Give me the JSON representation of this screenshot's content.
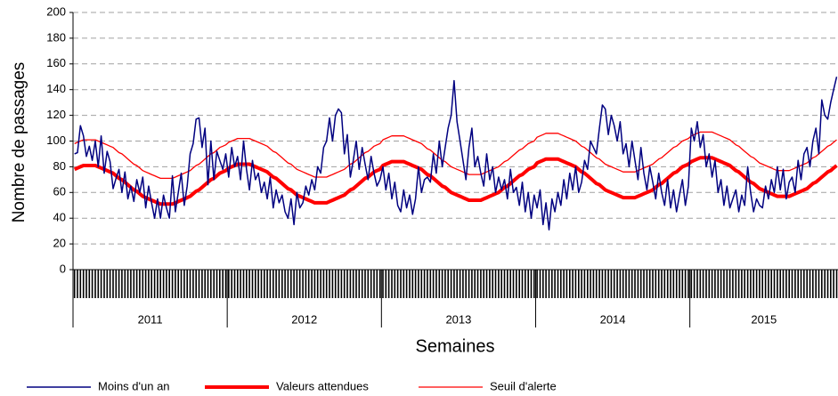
{
  "chart_data": {
    "type": "line",
    "ylabel": "Nombre de passages",
    "xlabel": "Semaines",
    "ylim": [
      0,
      200
    ],
    "yticks": [
      0,
      20,
      40,
      60,
      80,
      100,
      120,
      140,
      160,
      180,
      200
    ],
    "grid": true,
    "legend": "bottom",
    "categories": [
      "2011",
      "2011",
      "2011",
      "2011",
      "2011",
      "2011",
      "2011",
      "2011",
      "2011",
      "2011",
      "2011",
      "2011",
      "2011",
      "2011",
      "2011",
      "2011",
      "2011",
      "2011",
      "2011",
      "2011",
      "2011",
      "2011",
      "2011",
      "2011",
      "2011",
      "2011",
      "2011",
      "2011",
      "2011",
      "2011",
      "2011",
      "2011",
      "2011",
      "2011",
      "2011",
      "2011",
      "2011",
      "2011",
      "2011",
      "2011",
      "2011",
      "2011",
      "2011",
      "2011",
      "2011",
      "2011",
      "2011",
      "2011",
      "2011",
      "2011",
      "2011",
      "2011",
      "2012",
      "2012",
      "2012",
      "2012",
      "2012",
      "2012",
      "2012",
      "2012",
      "2012",
      "2012",
      "2012",
      "2012",
      "2012",
      "2012",
      "2012",
      "2012",
      "2012",
      "2012",
      "2012",
      "2012",
      "2012",
      "2012",
      "2012",
      "2012",
      "2012",
      "2012",
      "2012",
      "2012",
      "2012",
      "2012",
      "2012",
      "2012",
      "2012",
      "2012",
      "2012",
      "2012",
      "2012",
      "2012",
      "2012",
      "2012",
      "2012",
      "2012",
      "2012",
      "2012",
      "2012",
      "2012",
      "2012",
      "2012",
      "2012",
      "2012",
      "2012",
      "2012",
      "2013",
      "2013",
      "2013",
      "2013",
      "2013",
      "2013",
      "2013",
      "2013",
      "2013",
      "2013",
      "2013",
      "2013",
      "2013",
      "2013",
      "2013",
      "2013",
      "2013",
      "2013",
      "2013",
      "2013",
      "2013",
      "2013",
      "2013",
      "2013",
      "2013",
      "2013",
      "2013",
      "2013",
      "2013",
      "2013",
      "2013",
      "2013",
      "2013",
      "2013",
      "2013",
      "2013",
      "2013",
      "2013",
      "2013",
      "2013",
      "2013",
      "2013",
      "2013",
      "2013",
      "2013",
      "2013",
      "2013",
      "2013",
      "2013",
      "2013",
      "2013",
      "2013",
      "2014",
      "2014",
      "2014",
      "2014",
      "2014",
      "2014",
      "2014",
      "2014",
      "2014",
      "2014",
      "2014",
      "2014",
      "2014",
      "2014",
      "2014",
      "2014",
      "2014",
      "2014",
      "2014",
      "2014",
      "2014",
      "2014",
      "2014",
      "2014",
      "2014",
      "2014",
      "2014",
      "2014",
      "2014",
      "2014",
      "2014",
      "2014",
      "2014",
      "2014",
      "2014",
      "2014",
      "2014",
      "2014",
      "2014",
      "2014",
      "2014",
      "2014",
      "2014",
      "2014",
      "2014",
      "2014",
      "2014",
      "2014",
      "2014",
      "2014",
      "2014",
      "2014",
      "2015",
      "2015",
      "2015",
      "2015",
      "2015",
      "2015",
      "2015",
      "2015",
      "2015",
      "2015",
      "2015",
      "2015",
      "2015",
      "2015",
      "2015",
      "2015",
      "2015",
      "2015",
      "2015",
      "2015",
      "2015",
      "2015",
      "2015",
      "2015",
      "2015",
      "2015",
      "2015",
      "2015",
      "2015",
      "2015",
      "2015",
      "2015",
      "2015",
      "2015",
      "2015",
      "2015",
      "2015",
      "2015",
      "2015",
      "2015",
      "2015",
      "2015",
      "2015",
      "2015",
      "2015",
      "2015",
      "2015",
      "2015",
      "2015",
      "2015"
    ],
    "series": [
      {
        "name": "Moins d'un an",
        "color": "#000080",
        "width": 1.5,
        "values": [
          90,
          91,
          112,
          104,
          88,
          96,
          85,
          100,
          80,
          104,
          75,
          92,
          84,
          63,
          71,
          78,
          60,
          76,
          55,
          65,
          53,
          70,
          60,
          72,
          48,
          65,
          52,
          40,
          55,
          40,
          58,
          48,
          40,
          73,
          45,
          60,
          75,
          50,
          65,
          90,
          98,
          117,
          118,
          95,
          110,
          66,
          100,
          70,
          92,
          85,
          78,
          90,
          72,
          95,
          80,
          88,
          70,
          100,
          78,
          62,
          85,
          70,
          75,
          60,
          68,
          55,
          72,
          48,
          62,
          52,
          58,
          45,
          40,
          55,
          35,
          60,
          48,
          52,
          65,
          58,
          70,
          62,
          80,
          75,
          95,
          100,
          118,
          100,
          120,
          125,
          122,
          90,
          105,
          72,
          85,
          100,
          78,
          95,
          82,
          70,
          88,
          75,
          65,
          70,
          80,
          62,
          75,
          55,
          68,
          50,
          45,
          62,
          48,
          58,
          43,
          55,
          80,
          60,
          70,
          72,
          68,
          90,
          75,
          100,
          80,
          95,
          110,
          120,
          147,
          115,
          100,
          85,
          70,
          95,
          110,
          80,
          88,
          75,
          65,
          90,
          70,
          80,
          60,
          72,
          62,
          70,
          55,
          78,
          60,
          64,
          50,
          68,
          45,
          60,
          40,
          58,
          48,
          62,
          35,
          52,
          31,
          55,
          45,
          60,
          50,
          70,
          55,
          75,
          62,
          80,
          60,
          68,
          85,
          78,
          100,
          95,
          90,
          110,
          128,
          125,
          105,
          120,
          112,
          100,
          115,
          90,
          98,
          80,
          100,
          85,
          70,
          95,
          75,
          62,
          80,
          68,
          55,
          75,
          60,
          50,
          70,
          48,
          62,
          45,
          58,
          70,
          50,
          65,
          110,
          100,
          115,
          95,
          105,
          80,
          90,
          72,
          85,
          60,
          70,
          50,
          65,
          48,
          55,
          62,
          45,
          58,
          50,
          80,
          60,
          45,
          55,
          50,
          48,
          65,
          55,
          70,
          60,
          80,
          62,
          78,
          55,
          68,
          72,
          60,
          85,
          70,
          90,
          95,
          80,
          100,
          110,
          90,
          132,
          120,
          117,
          130,
          140,
          150
        ]
      },
      {
        "name": "Valeurs attendues",
        "color": "#ff0000",
        "width": 4,
        "values": [
          78,
          79,
          80,
          81,
          81,
          81,
          81,
          81,
          80,
          79,
          78,
          77,
          76,
          75,
          73,
          71,
          70,
          68,
          66,
          64,
          62,
          61,
          59,
          57,
          56,
          55,
          54,
          53,
          52,
          51,
          51,
          51,
          51,
          51,
          52,
          53,
          54,
          55,
          56,
          57,
          59,
          61,
          62,
          64,
          66,
          68,
          70,
          71,
          73,
          75,
          76,
          77,
          79,
          80,
          81,
          82,
          82,
          82,
          82,
          82,
          81,
          80,
          79,
          78,
          77,
          76,
          74,
          72,
          71,
          69,
          67,
          65,
          63,
          62,
          60,
          58,
          57,
          56,
          55,
          54,
          53,
          52,
          52,
          52,
          52,
          52,
          53,
          54,
          55,
          56,
          57,
          58,
          60,
          62,
          63,
          65,
          67,
          69,
          71,
          72,
          74,
          76,
          77,
          78,
          81,
          82,
          83,
          84,
          84,
          84,
          84,
          84,
          83,
          82,
          81,
          80,
          79,
          78,
          76,
          74,
          73,
          71,
          69,
          67,
          65,
          64,
          62,
          60,
          59,
          58,
          57,
          56,
          55,
          54,
          54,
          54,
          54,
          54,
          55,
          56,
          57,
          58,
          59,
          60,
          62,
          64,
          65,
          67,
          69,
          71,
          73,
          74,
          76,
          78,
          79,
          80,
          83,
          84,
          85,
          86,
          86,
          86,
          86,
          86,
          85,
          84,
          83,
          82,
          81,
          80,
          78,
          76,
          75,
          73,
          71,
          69,
          67,
          66,
          64,
          62,
          61,
          60,
          59,
          58,
          57,
          56,
          56,
          56,
          56,
          56,
          57,
          58,
          59,
          60,
          61,
          62,
          64,
          66,
          67,
          69,
          71,
          73,
          75,
          76,
          78,
          80,
          81,
          82,
          84,
          85,
          86,
          87,
          87,
          87,
          87,
          87,
          86,
          85,
          84,
          83,
          82,
          81,
          79,
          77,
          76,
          74,
          72,
          70,
          68,
          67,
          65,
          63,
          62,
          61,
          60,
          59,
          58,
          57,
          57,
          57,
          57,
          57,
          58,
          59,
          60,
          61,
          62,
          63,
          65,
          67,
          68,
          70,
          72,
          74,
          76,
          77,
          79,
          81
        ]
      },
      {
        "name": "Seuil d'alerte",
        "color": "#ff0000",
        "width": 1.3,
        "values": [
          98,
          99,
          100,
          101,
          101,
          101,
          101,
          101,
          100,
          99,
          98,
          97,
          96,
          95,
          93,
          91,
          90,
          88,
          86,
          84,
          82,
          81,
          79,
          77,
          76,
          75,
          74,
          73,
          72,
          71,
          71,
          71,
          71,
          71,
          72,
          73,
          74,
          75,
          76,
          77,
          79,
          81,
          82,
          84,
          86,
          88,
          90,
          91,
          93,
          95,
          96,
          97,
          99,
          100,
          101,
          102,
          102,
          102,
          102,
          102,
          101,
          100,
          99,
          98,
          97,
          96,
          94,
          92,
          91,
          89,
          87,
          85,
          83,
          82,
          80,
          78,
          77,
          76,
          75,
          74,
          73,
          72,
          72,
          72,
          72,
          72,
          73,
          74,
          75,
          76,
          77,
          78,
          80,
          82,
          83,
          85,
          87,
          89,
          91,
          92,
          94,
          96,
          97,
          98,
          101,
          102,
          103,
          104,
          104,
          104,
          104,
          104,
          103,
          102,
          101,
          100,
          99,
          98,
          96,
          94,
          93,
          91,
          89,
          87,
          85,
          84,
          82,
          80,
          79,
          78,
          77,
          76,
          75,
          74,
          74,
          74,
          74,
          74,
          75,
          76,
          77,
          78,
          79,
          80,
          82,
          84,
          85,
          87,
          89,
          91,
          93,
          94,
          96,
          98,
          99,
          100,
          103,
          104,
          105,
          106,
          106,
          106,
          106,
          106,
          105,
          104,
          103,
          102,
          101,
          100,
          98,
          96,
          95,
          93,
          91,
          89,
          87,
          86,
          84,
          82,
          81,
          80,
          79,
          78,
          77,
          76,
          76,
          76,
          76,
          76,
          77,
          78,
          79,
          80,
          81,
          82,
          84,
          86,
          87,
          89,
          91,
          93,
          95,
          96,
          98,
          100,
          101,
          102,
          104,
          105,
          106,
          107,
          107,
          107,
          107,
          107,
          106,
          105,
          104,
          103,
          102,
          101,
          99,
          97,
          96,
          94,
          92,
          90,
          88,
          87,
          85,
          83,
          82,
          81,
          80,
          79,
          78,
          77,
          77,
          77,
          77,
          77,
          78,
          79,
          80,
          81,
          82,
          83,
          85,
          87,
          88,
          90,
          92,
          94,
          96,
          97,
          99,
          101
        ]
      }
    ]
  }
}
